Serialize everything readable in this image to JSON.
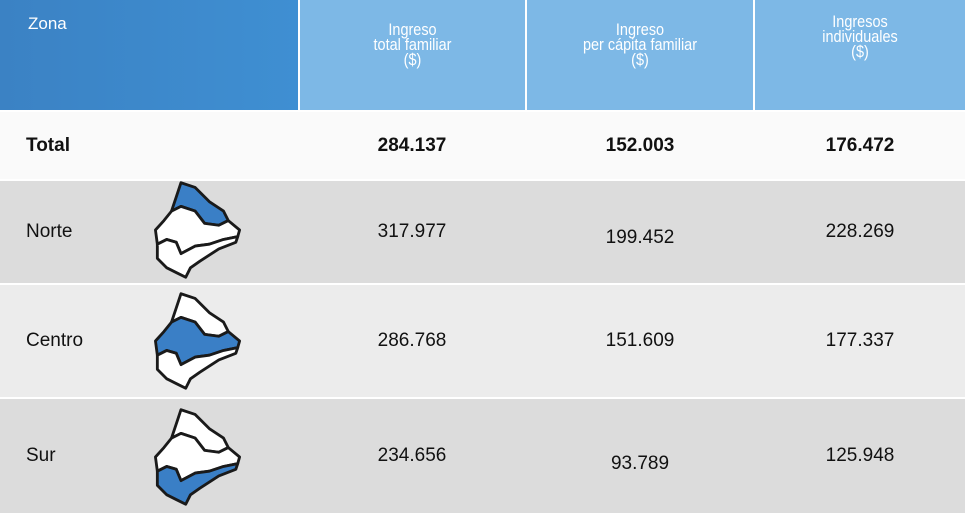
{
  "header": {
    "zona": "Zona",
    "columns": [
      [
        "Ingreso",
        "total familiar",
        "($)"
      ],
      [
        "Ingreso",
        "per cápita familiar",
        "($)"
      ],
      [
        "Ingresos",
        "individuales",
        "($)"
      ]
    ]
  },
  "table": {
    "rows": [
      {
        "zona": "Total",
        "values": [
          "284.137",
          "152.003",
          "176.472"
        ]
      },
      {
        "zona": "Norte",
        "values": [
          "317.977",
          "199.452",
          "228.269"
        ]
      },
      {
        "zona": "Centro",
        "values": [
          "286.768",
          "151.609",
          "177.337"
        ]
      },
      {
        "zona": "Sur",
        "values": [
          "234.656",
          "93.789",
          "125.948"
        ]
      }
    ]
  }
}
